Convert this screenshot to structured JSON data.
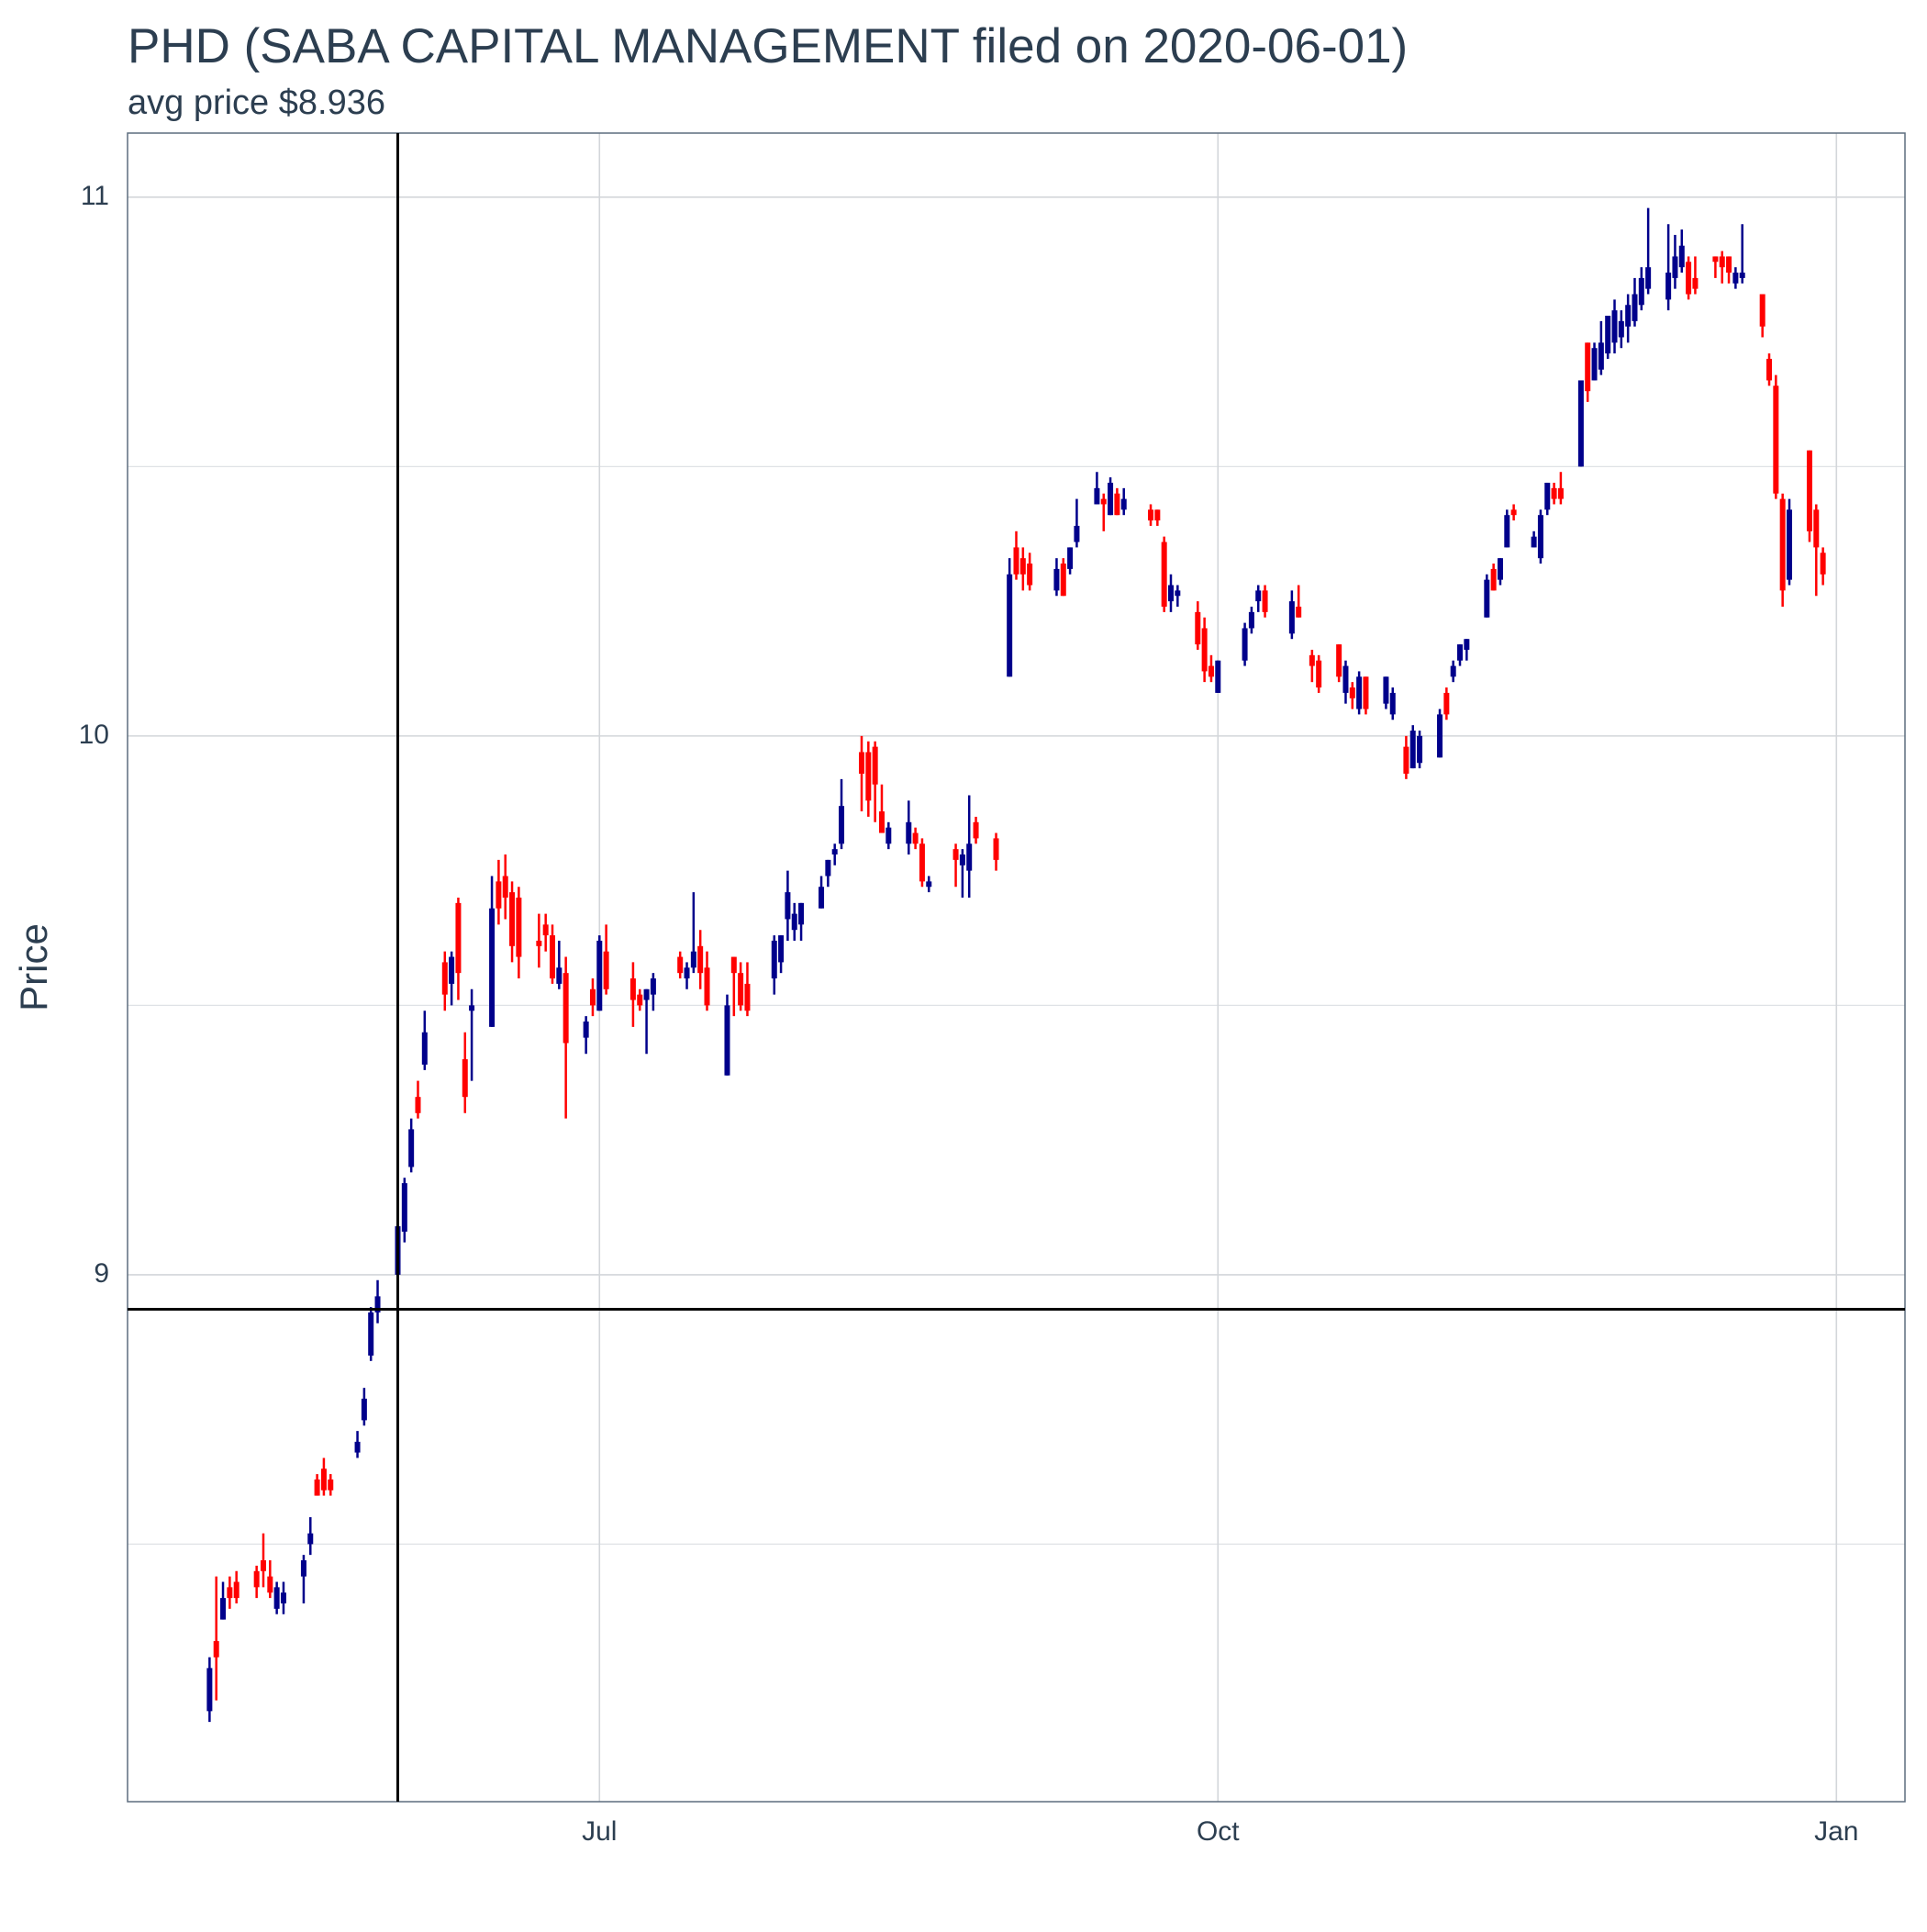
{
  "chart_data": {
    "type": "candlestick",
    "title": "PHD (SABA CAPITAL MANAGEMENT filed on 2020-06-01)",
    "subtitle": "avg price $8.936",
    "y_label": "Price",
    "up_color": "#00008b",
    "down_color": "#ff0000",
    "grid": true,
    "xlim": [
      111.8,
      376.2
    ],
    "xticks": [
      {
        "value": 182,
        "label": "Jul"
      },
      {
        "value": 274,
        "label": "Oct"
      },
      {
        "value": 366,
        "label": "Jan"
      }
    ],
    "ylim": [
      8.022,
      11.119
    ],
    "yticks": [
      9,
      10,
      11
    ],
    "minor_yticks": [
      8.5,
      9.5,
      10.5
    ],
    "vline": 152,
    "hline": 8.936,
    "x": [
      124,
      125,
      126,
      127,
      128,
      131,
      132,
      133,
      134,
      135,
      138,
      139,
      140,
      141,
      142,
      146,
      147,
      148,
      149,
      152,
      153,
      154,
      155,
      156,
      159,
      160,
      161,
      162,
      163,
      166,
      167,
      168,
      169,
      170,
      173,
      174,
      175,
      176,
      177,
      180,
      181,
      182,
      183,
      187,
      188,
      189,
      190,
      194,
      195,
      196,
      197,
      198,
      201,
      202,
      203,
      204,
      208,
      209,
      210,
      211,
      212,
      215,
      216,
      217,
      218,
      221,
      222,
      223,
      224,
      225,
      228,
      229,
      230,
      231,
      235,
      236,
      237,
      238,
      241,
      243,
      244,
      245,
      246,
      250,
      251,
      252,
      253,
      256,
      257,
      258,
      259,
      260,
      264,
      265,
      266,
      267,
      268,
      271,
      272,
      273,
      274,
      278,
      279,
      280,
      281,
      285,
      286,
      288,
      289,
      292,
      293,
      294,
      295,
      296,
      299,
      300,
      302,
      303,
      304,
      307,
      308,
      309,
      310,
      311,
      314,
      315,
      316,
      317,
      318,
      321,
      322,
      323,
      324,
      325,
      328,
      329,
      330,
      331,
      332,
      333,
      334,
      335,
      336,
      337,
      338,
      341,
      342,
      343,
      344,
      345,
      348,
      349,
      350,
      351,
      352,
      355,
      356,
      357,
      358,
      359,
      362,
      363,
      364
    ],
    "open": [
      8.19,
      8.32,
      8.36,
      8.42,
      8.43,
      8.45,
      8.47,
      8.44,
      8.38,
      8.39,
      8.44,
      8.5,
      8.62,
      8.64,
      8.62,
      8.67,
      8.73,
      8.85,
      8.93,
      9.0,
      9.08,
      9.2,
      9.33,
      9.39,
      9.58,
      9.54,
      9.69,
      9.4,
      9.49,
      9.46,
      9.73,
      9.74,
      9.71,
      9.7,
      9.62,
      9.65,
      9.63,
      9.54,
      9.56,
      9.44,
      9.53,
      9.49,
      9.6,
      9.55,
      9.52,
      9.51,
      9.52,
      9.59,
      9.55,
      9.57,
      9.61,
      9.57,
      9.37,
      9.59,
      9.56,
      9.54,
      9.55,
      9.58,
      9.66,
      9.64,
      9.65,
      9.68,
      9.74,
      9.78,
      9.8,
      9.97,
      9.97,
      9.98,
      9.86,
      9.8,
      9.8,
      9.82,
      9.8,
      9.72,
      9.79,
      9.76,
      9.75,
      9.84,
      9.81,
      10.11,
      10.35,
      10.33,
      10.32,
      10.27,
      10.32,
      10.31,
      10.36,
      10.43,
      10.44,
      10.41,
      10.45,
      10.42,
      10.42,
      10.42,
      10.36,
      10.25,
      10.26,
      10.23,
      10.2,
      10.13,
      10.08,
      10.14,
      10.2,
      10.25,
      10.27,
      10.19,
      10.24,
      10.15,
      10.14,
      10.17,
      10.08,
      10.09,
      10.05,
      10.11,
      10.06,
      10.04,
      9.98,
      9.94,
      9.95,
      9.96,
      10.08,
      10.11,
      10.14,
      10.16,
      10.22,
      10.31,
      10.29,
      10.35,
      10.42,
      10.35,
      10.33,
      10.42,
      10.46,
      10.46,
      10.5,
      10.73,
      10.66,
      10.68,
      10.71,
      10.73,
      10.74,
      10.76,
      10.77,
      10.8,
      10.83,
      10.81,
      10.85,
      10.87,
      10.88,
      10.85,
      10.89,
      10.89,
      10.89,
      10.84,
      10.85,
      10.82,
      10.7,
      10.65,
      10.44,
      10.29,
      10.53,
      10.42,
      10.34
    ],
    "high": [
      8.29,
      8.44,
      8.43,
      8.44,
      8.45,
      8.46,
      8.52,
      8.47,
      8.43,
      8.43,
      8.48,
      8.55,
      8.63,
      8.66,
      8.63,
      8.71,
      8.79,
      8.94,
      8.99,
      9.1,
      9.18,
      9.29,
      9.36,
      9.49,
      9.6,
      9.6,
      9.7,
      9.45,
      9.53,
      9.74,
      9.77,
      9.78,
      9.73,
      9.72,
      9.67,
      9.67,
      9.65,
      9.62,
      9.59,
      9.48,
      9.55,
      9.63,
      9.65,
      9.58,
      9.53,
      9.53,
      9.56,
      9.6,
      9.58,
      9.71,
      9.64,
      9.6,
      9.52,
      9.59,
      9.58,
      9.58,
      9.63,
      9.63,
      9.75,
      9.69,
      9.69,
      9.74,
      9.77,
      9.8,
      9.92,
      10.0,
      9.99,
      9.99,
      9.91,
      9.84,
      9.88,
      9.83,
      9.81,
      9.74,
      9.8,
      9.79,
      9.89,
      9.85,
      9.82,
      10.33,
      10.38,
      10.35,
      10.34,
      10.33,
      10.33,
      10.35,
      10.44,
      10.49,
      10.45,
      10.48,
      10.46,
      10.46,
      10.43,
      10.42,
      10.37,
      10.3,
      10.28,
      10.25,
      10.22,
      10.15,
      10.14,
      10.21,
      10.24,
      10.28,
      10.28,
      10.27,
      10.28,
      10.16,
      10.15,
      10.17,
      10.14,
      10.1,
      10.12,
      10.11,
      10.11,
      10.09,
      10.0,
      10.02,
      10.01,
      10.05,
      10.09,
      10.14,
      10.17,
      10.18,
      10.3,
      10.32,
      10.33,
      10.42,
      10.43,
      10.38,
      10.42,
      10.47,
      10.47,
      10.49,
      10.66,
      10.73,
      10.73,
      10.77,
      10.78,
      10.81,
      10.79,
      10.82,
      10.85,
      10.87,
      10.98,
      10.95,
      10.93,
      10.94,
      10.89,
      10.89,
      10.89,
      10.9,
      10.89,
      10.87,
      10.95,
      10.82,
      10.71,
      10.67,
      10.45,
      10.44,
      10.53,
      10.43,
      10.35
    ],
    "low": [
      8.17,
      8.21,
      8.36,
      8.38,
      8.39,
      8.4,
      8.42,
      8.4,
      8.37,
      8.37,
      8.39,
      8.48,
      8.59,
      8.59,
      8.59,
      8.66,
      8.72,
      8.84,
      8.91,
      8.99,
      9.06,
      9.19,
      9.29,
      9.38,
      9.49,
      9.5,
      9.51,
      9.3,
      9.36,
      9.46,
      9.65,
      9.66,
      9.58,
      9.55,
      9.57,
      9.6,
      9.54,
      9.53,
      9.29,
      9.41,
      9.48,
      9.49,
      9.52,
      9.46,
      9.49,
      9.41,
      9.49,
      9.55,
      9.53,
      9.56,
      9.53,
      9.49,
      9.37,
      9.48,
      9.49,
      9.48,
      9.52,
      9.56,
      9.62,
      9.62,
      9.62,
      9.68,
      9.72,
      9.76,
      9.79,
      9.86,
      9.85,
      9.84,
      9.82,
      9.79,
      9.78,
      9.79,
      9.72,
      9.71,
      9.72,
      9.7,
      9.7,
      9.8,
      9.75,
      10.11,
      10.29,
      10.27,
      10.27,
      10.26,
      10.26,
      10.3,
      10.35,
      10.43,
      10.38,
      10.41,
      10.41,
      10.41,
      10.39,
      10.39,
      10.23,
      10.23,
      10.24,
      10.16,
      10.1,
      10.1,
      10.08,
      10.13,
      10.19,
      10.23,
      10.22,
      10.18,
      10.22,
      10.1,
      10.08,
      10.1,
      10.06,
      10.05,
      10.04,
      10.04,
      10.05,
      10.03,
      9.92,
      9.94,
      9.94,
      9.96,
      10.03,
      10.1,
      10.13,
      10.14,
      10.22,
      10.27,
      10.28,
      10.35,
      10.4,
      10.35,
      10.32,
      10.41,
      10.43,
      10.43,
      10.5,
      10.62,
      10.66,
      10.67,
      10.7,
      10.71,
      10.72,
      10.73,
      10.76,
      10.79,
      10.82,
      10.79,
      10.83,
      10.86,
      10.81,
      10.82,
      10.85,
      10.84,
      10.84,
      10.83,
      10.84,
      10.74,
      10.65,
      10.44,
      10.24,
      10.28,
      10.36,
      10.26,
      10.28
    ],
    "close": [
      8.27,
      8.29,
      8.4,
      8.4,
      8.4,
      8.42,
      8.45,
      8.41,
      8.42,
      8.41,
      8.47,
      8.52,
      8.59,
      8.6,
      8.6,
      8.69,
      8.77,
      8.93,
      8.96,
      9.09,
      9.17,
      9.27,
      9.3,
      9.45,
      9.52,
      9.59,
      9.56,
      9.33,
      9.5,
      9.68,
      9.68,
      9.7,
      9.61,
      9.59,
      9.61,
      9.63,
      9.55,
      9.57,
      9.43,
      9.47,
      9.5,
      9.62,
      9.53,
      9.51,
      9.5,
      9.53,
      9.55,
      9.56,
      9.57,
      9.6,
      9.56,
      9.5,
      9.5,
      9.56,
      9.5,
      9.49,
      9.62,
      9.63,
      9.71,
      9.67,
      9.69,
      9.72,
      9.77,
      9.79,
      9.87,
      9.93,
      9.88,
      9.91,
      9.82,
      9.83,
      9.84,
      9.8,
      9.73,
      9.73,
      9.77,
      9.78,
      9.8,
      9.81,
      9.77,
      10.3,
      10.3,
      10.3,
      10.28,
      10.31,
      10.26,
      10.35,
      10.39,
      10.46,
      10.43,
      10.47,
      10.41,
      10.44,
      10.4,
      10.4,
      10.24,
      10.28,
      10.27,
      10.17,
      10.12,
      10.11,
      10.14,
      10.2,
      10.23,
      10.27,
      10.23,
      10.25,
      10.22,
      10.13,
      10.09,
      10.11,
      10.13,
      10.07,
      10.11,
      10.05,
      10.11,
      10.08,
      9.93,
      10.01,
      10.0,
      10.04,
      10.04,
      10.13,
      10.17,
      10.18,
      10.29,
      10.27,
      10.33,
      10.41,
      10.41,
      10.37,
      10.41,
      10.47,
      10.44,
      10.44,
      10.66,
      10.64,
      10.72,
      10.73,
      10.78,
      10.79,
      10.77,
      10.8,
      10.82,
      10.85,
      10.87,
      10.86,
      10.89,
      10.91,
      10.82,
      10.83,
      10.88,
      10.87,
      10.86,
      10.86,
      10.86,
      10.76,
      10.66,
      10.45,
      10.27,
      10.42,
      10.38,
      10.35,
      10.3
    ]
  }
}
